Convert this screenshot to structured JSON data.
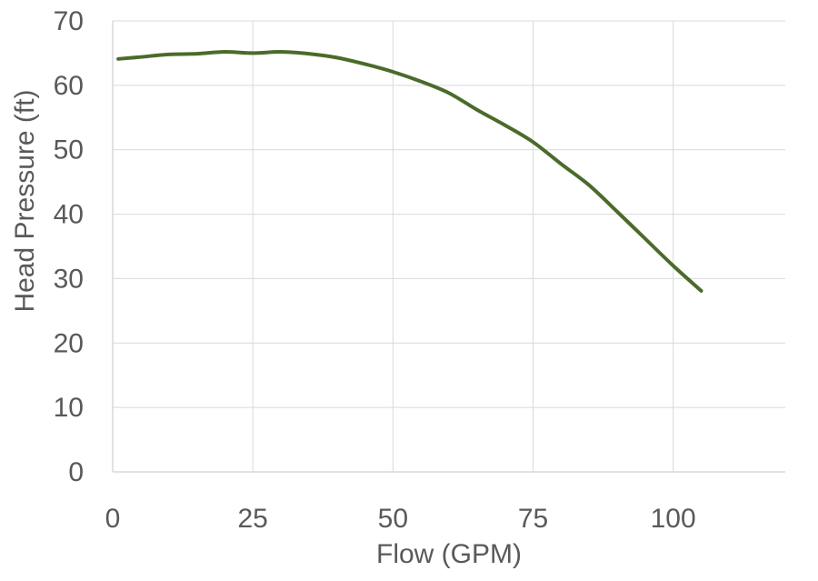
{
  "chart_data": {
    "type": "line",
    "xlabel": "Flow (GPM)",
    "ylabel": "Head Pressure (ft)",
    "xlim": [
      0,
      120
    ],
    "ylim": [
      0,
      70
    ],
    "x_ticks": [
      0,
      25,
      50,
      75,
      100
    ],
    "y_ticks": [
      0,
      10,
      20,
      30,
      40,
      50,
      60,
      70
    ],
    "x_tick_labels": [
      "0",
      "25",
      "50",
      "75",
      "100"
    ],
    "y_tick_labels": [
      "0",
      "10",
      "20",
      "30",
      "40",
      "50",
      "60",
      "70"
    ],
    "grid": true,
    "legend": "none",
    "line_color": "#4a6b2a",
    "series": [
      {
        "x": [
          1,
          5,
          10,
          15,
          20,
          25,
          30,
          35,
          40,
          45,
          50,
          55,
          60,
          65,
          70,
          75,
          80,
          85,
          90,
          95,
          100,
          105
        ],
        "y": [
          64.1,
          64.4,
          64.8,
          64.9,
          65.2,
          65.0,
          65.2,
          64.9,
          64.3,
          63.3,
          62.1,
          60.6,
          58.8,
          56.2,
          53.8,
          51.2,
          47.8,
          44.5,
          40.4,
          36.2,
          32.0,
          28.1
        ]
      }
    ]
  }
}
